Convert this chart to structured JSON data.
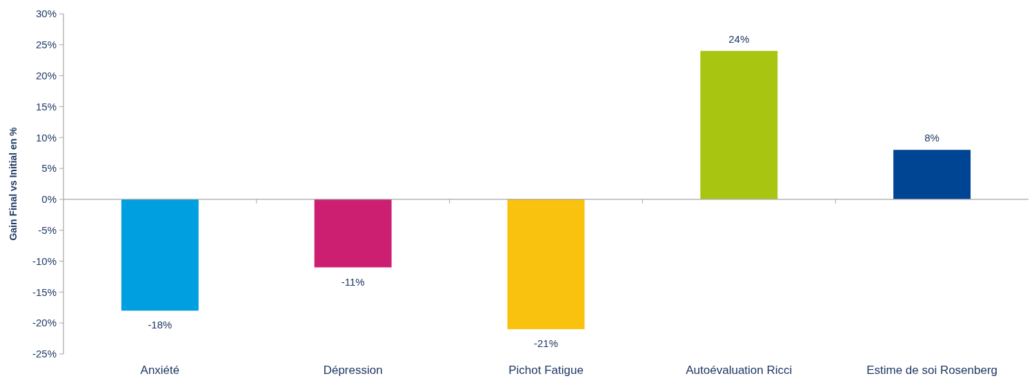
{
  "chart_data": {
    "type": "bar",
    "ylabel": "Gain Final vs Initial en %",
    "categories": [
      "Anxiété",
      "Dépression",
      "Pichot Fatigue",
      "Autoévaluation Ricci",
      "Estime de soi Rosenberg"
    ],
    "values": [
      -18,
      -11,
      -21,
      24,
      8
    ],
    "colors": [
      "#009fe0",
      "#cc1f72",
      "#f9c20f",
      "#a8c512",
      "#004593"
    ],
    "value_labels": [
      "-18%",
      "-11%",
      "-21%",
      "24%",
      "8%"
    ],
    "ylim": [
      -25,
      30
    ],
    "yticks": [
      {
        "value": -25,
        "label": "-25%"
      },
      {
        "value": -20,
        "label": "-20%"
      },
      {
        "value": -15,
        "label": "-15%"
      },
      {
        "value": -10,
        "label": "-10%"
      },
      {
        "value": -5,
        "label": "-5%"
      },
      {
        "value": 0,
        "label": "0%"
      },
      {
        "value": 5,
        "label": "5%"
      },
      {
        "value": 10,
        "label": "10%"
      },
      {
        "value": 15,
        "label": "15%"
      },
      {
        "value": 20,
        "label": "20%"
      },
      {
        "value": 25,
        "label": "25%"
      },
      {
        "value": 30,
        "label": "30%"
      }
    ]
  }
}
